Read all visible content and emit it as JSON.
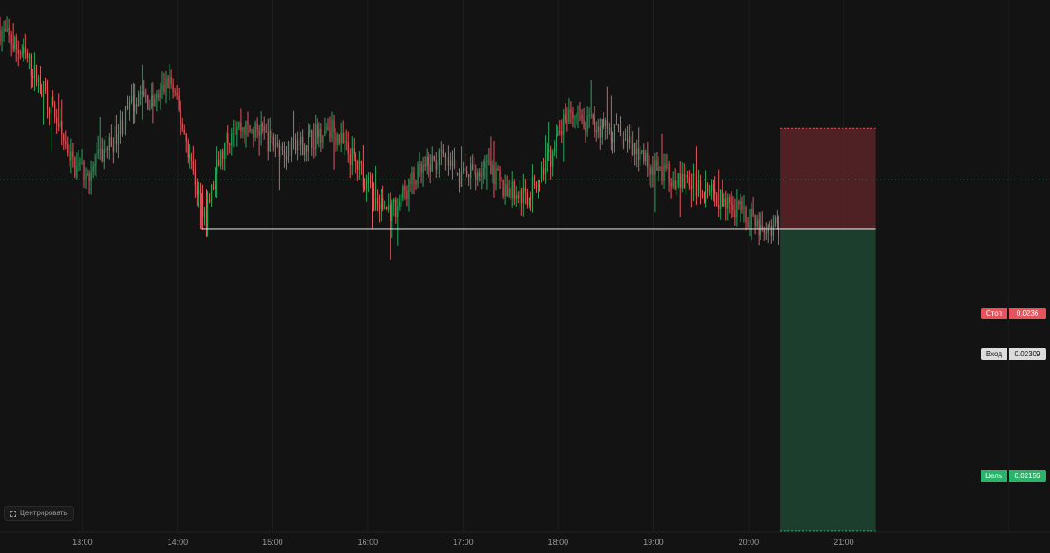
{
  "chart_data": {
    "type": "candlestick",
    "x_ticks": [
      "13:00",
      "14:00",
      "15:00",
      "16:00",
      "17:00",
      "18:00",
      "19:00",
      "20:00",
      "21:00"
    ],
    "x_range": [
      "12:08",
      "23:10"
    ],
    "ylim": [
      0.02145,
      0.02425
    ],
    "grid": true,
    "colors": {
      "up": "#26a65b",
      "down": "#e5545c",
      "background": "#131313"
    },
    "price_path": [
      [
        "12:08",
        0.0241
      ],
      [
        "12:25",
        0.02395
      ],
      [
        "12:40",
        0.02372
      ],
      [
        "12:55",
        0.0234
      ],
      [
        "13:05",
        0.02338
      ],
      [
        "13:20",
        0.02355
      ],
      [
        "13:35",
        0.02378
      ],
      [
        "13:45",
        0.02372
      ],
      [
        "13:55",
        0.02385
      ],
      [
        "14:05",
        0.02355
      ],
      [
        "14:12",
        0.0233
      ],
      [
        "14:18",
        0.02315
      ],
      [
        "14:25",
        0.0234
      ],
      [
        "14:35",
        0.02362
      ],
      [
        "14:50",
        0.02358
      ],
      [
        "15:10",
        0.02348
      ],
      [
        "15:25",
        0.02355
      ],
      [
        "15:35",
        0.02362
      ],
      [
        "15:50",
        0.02345
      ],
      [
        "15:58",
        0.02335
      ],
      [
        "16:05",
        0.02322
      ],
      [
        "16:15",
        0.02318
      ],
      [
        "16:30",
        0.02335
      ],
      [
        "16:45",
        0.02345
      ],
      [
        "17:00",
        0.02335
      ],
      [
        "17:15",
        0.0234
      ],
      [
        "17:25",
        0.0233
      ],
      [
        "17:40",
        0.02325
      ],
      [
        "17:55",
        0.02345
      ],
      [
        "18:05",
        0.02365
      ],
      [
        "18:15",
        0.02362
      ],
      [
        "18:30",
        0.0236
      ],
      [
        "18:45",
        0.02352
      ],
      [
        "19:00",
        0.0234
      ],
      [
        "19:15",
        0.02335
      ],
      [
        "19:30",
        0.0233
      ],
      [
        "19:45",
        0.02322
      ],
      [
        "20:00",
        0.02315
      ],
      [
        "20:10",
        0.02305
      ],
      [
        "20:20",
        0.02312
      ]
    ],
    "support_line": {
      "value": 0.02309,
      "from": "14:15",
      "to": "20:20",
      "touches": [
        "14:15",
        "16:03"
      ]
    },
    "current_price_line": 0.02334,
    "position": {
      "side": "short",
      "from": "20:20",
      "to": "21:20",
      "stop": 0.0236,
      "entry": 0.02309,
      "target": 0.02156
    },
    "labels": {
      "stop": {
        "text": "Стоп",
        "value": "0.0236"
      },
      "entry": {
        "text": "Вход",
        "value": "0.02309"
      },
      "target": {
        "text": "Цель",
        "value": "0.02156"
      }
    }
  },
  "ui": {
    "center_button": {
      "label": "Центрировать",
      "icon": "center-icon"
    }
  }
}
